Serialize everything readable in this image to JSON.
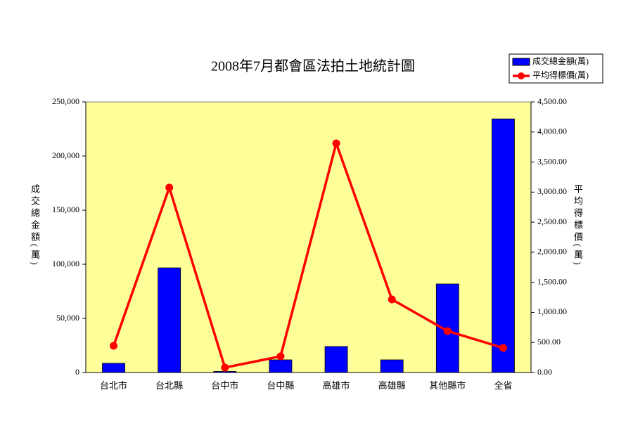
{
  "chart_data": {
    "type": "bar_line",
    "title": "2008年7月都會區法拍土地統計圖",
    "y_label": "成交總金額(萬)",
    "y2_label": "平均得標價(萬)",
    "categories": [
      "台北市",
      "台北縣",
      "台中市",
      "台中縣",
      "高雄市",
      "高雄縣",
      "其他縣市",
      "全省"
    ],
    "series": [
      {
        "name": "成交總金額(萬)",
        "color": "#0000ff",
        "type": "bar",
        "values": [
          8500,
          96700,
          1000,
          11700,
          24000,
          11700,
          81800,
          234300
        ]
      },
      {
        "name": "平均得標價(萬)",
        "color": "#ff0000",
        "type": "line",
        "axis": "y2",
        "values": [
          444,
          3075,
          82,
          269,
          3811,
          1216,
          690,
          409
        ]
      }
    ],
    "ylim": [
      0,
      250000
    ],
    "yticks": [
      0,
      {
        "value": 50000,
        "label": "50,000"
      },
      {
        "value": 100000,
        "label": "100,000"
      },
      {
        "value": 150000,
        "label": "150,000"
      },
      {
        "value": 200000,
        "label": "200,000"
      },
      {
        "value": 250000,
        "label": "250,000"
      }
    ],
    "y2lim": [
      0,
      4500
    ],
    "y2ticks": [
      {
        "value": 0,
        "label": "0.00"
      },
      {
        "value": 500,
        "label": "500.00"
      },
      {
        "value": 1000,
        "label": "1,000.00"
      },
      {
        "value": 1500,
        "label": "1,500.00"
      },
      {
        "value": 2000,
        "label": "2,000.00"
      },
      {
        "value": 2500,
        "label": "2,500.00"
      },
      {
        "value": 3000,
        "label": "3,000.00"
      },
      {
        "value": 3500,
        "label": "3,500.00"
      },
      {
        "value": 4000,
        "label": "4,000.00"
      },
      {
        "value": 4500,
        "label": "4,500.00"
      }
    ],
    "plot_background": "#ffff99"
  }
}
